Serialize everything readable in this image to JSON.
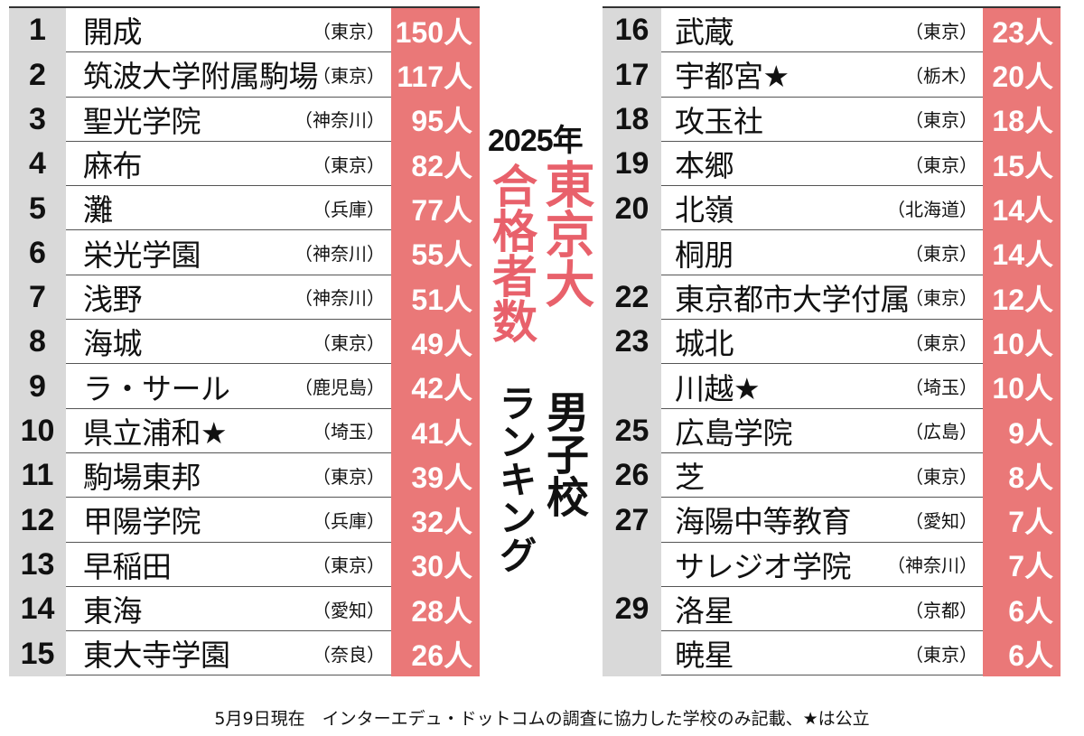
{
  "title": {
    "year": "2025年",
    "line1": "東京大",
    "line2": "合格者数",
    "line3": "男子校",
    "line4": "ランキング"
  },
  "left": [
    {
      "rank": "1",
      "name": "開成",
      "pref": "（東京）",
      "count": "150人"
    },
    {
      "rank": "2",
      "name": "筑波大学附属駒場",
      "pref": "（東京）",
      "count": "117人"
    },
    {
      "rank": "3",
      "name": "聖光学院",
      "pref": "（神奈川）",
      "count": "95人"
    },
    {
      "rank": "4",
      "name": "麻布",
      "pref": "（東京）",
      "count": "82人"
    },
    {
      "rank": "5",
      "name": "灘",
      "pref": "（兵庫）",
      "count": "77人"
    },
    {
      "rank": "6",
      "name": "栄光学園",
      "pref": "（神奈川）",
      "count": "55人"
    },
    {
      "rank": "7",
      "name": "浅野",
      "pref": "（神奈川）",
      "count": "51人"
    },
    {
      "rank": "8",
      "name": "海城",
      "pref": "（東京）",
      "count": "49人"
    },
    {
      "rank": "9",
      "name": "ラ・サール",
      "pref": "（鹿児島）",
      "count": "42人"
    },
    {
      "rank": "10",
      "name": "県立浦和★",
      "pref": "（埼玉）",
      "count": "41人"
    },
    {
      "rank": "11",
      "name": "駒場東邦",
      "pref": "（東京）",
      "count": "39人"
    },
    {
      "rank": "12",
      "name": "甲陽学院",
      "pref": "（兵庫）",
      "count": "32人"
    },
    {
      "rank": "13",
      "name": "早稲田",
      "pref": "（東京）",
      "count": "30人"
    },
    {
      "rank": "14",
      "name": "東海",
      "pref": "（愛知）",
      "count": "28人"
    },
    {
      "rank": "15",
      "name": "東大寺学園",
      "pref": "（奈良）",
      "count": "26人"
    }
  ],
  "right": [
    {
      "rank": "16",
      "name": "武蔵",
      "pref": "（東京）",
      "count": "23人"
    },
    {
      "rank": "17",
      "name": "宇都宮★",
      "pref": "（栃木）",
      "count": "20人"
    },
    {
      "rank": "18",
      "name": "攻玉社",
      "pref": "（東京）",
      "count": "18人"
    },
    {
      "rank": "19",
      "name": "本郷",
      "pref": "（東京）",
      "count": "15人"
    },
    {
      "rank": "20",
      "name": "北嶺",
      "pref": "（北海道）",
      "count": "14人"
    },
    {
      "rank": "",
      "name": "桐朋",
      "pref": "（東京）",
      "count": "14人"
    },
    {
      "rank": "22",
      "name": "東京都市大学付属",
      "pref": "（東京）",
      "count": "12人"
    },
    {
      "rank": "23",
      "name": "城北",
      "pref": "（東京）",
      "count": "10人"
    },
    {
      "rank": "",
      "name": "川越★",
      "pref": "（埼玉）",
      "count": "10人"
    },
    {
      "rank": "25",
      "name": "広島学院",
      "pref": "（広島）",
      "count": "9人"
    },
    {
      "rank": "26",
      "name": "芝",
      "pref": "（東京）",
      "count": "8人"
    },
    {
      "rank": "27",
      "name": "海陽中等教育",
      "pref": "（愛知）",
      "count": "7人"
    },
    {
      "rank": "",
      "name": "サレジオ学院",
      "pref": "（神奈川）",
      "count": "7人"
    },
    {
      "rank": "29",
      "name": "洛星",
      "pref": "（京都）",
      "count": "6人"
    },
    {
      "rank": "",
      "name": "暁星",
      "pref": "（東京）",
      "count": "6人"
    }
  ],
  "footer": "5月9日現在　インターエデュ・ドットコムの調査に協力した学校のみ記載、★は公立",
  "colors": {
    "count_bg": "#ea7878",
    "rank_bg": "#d9d9d9",
    "title_accent": "#e8616b"
  }
}
